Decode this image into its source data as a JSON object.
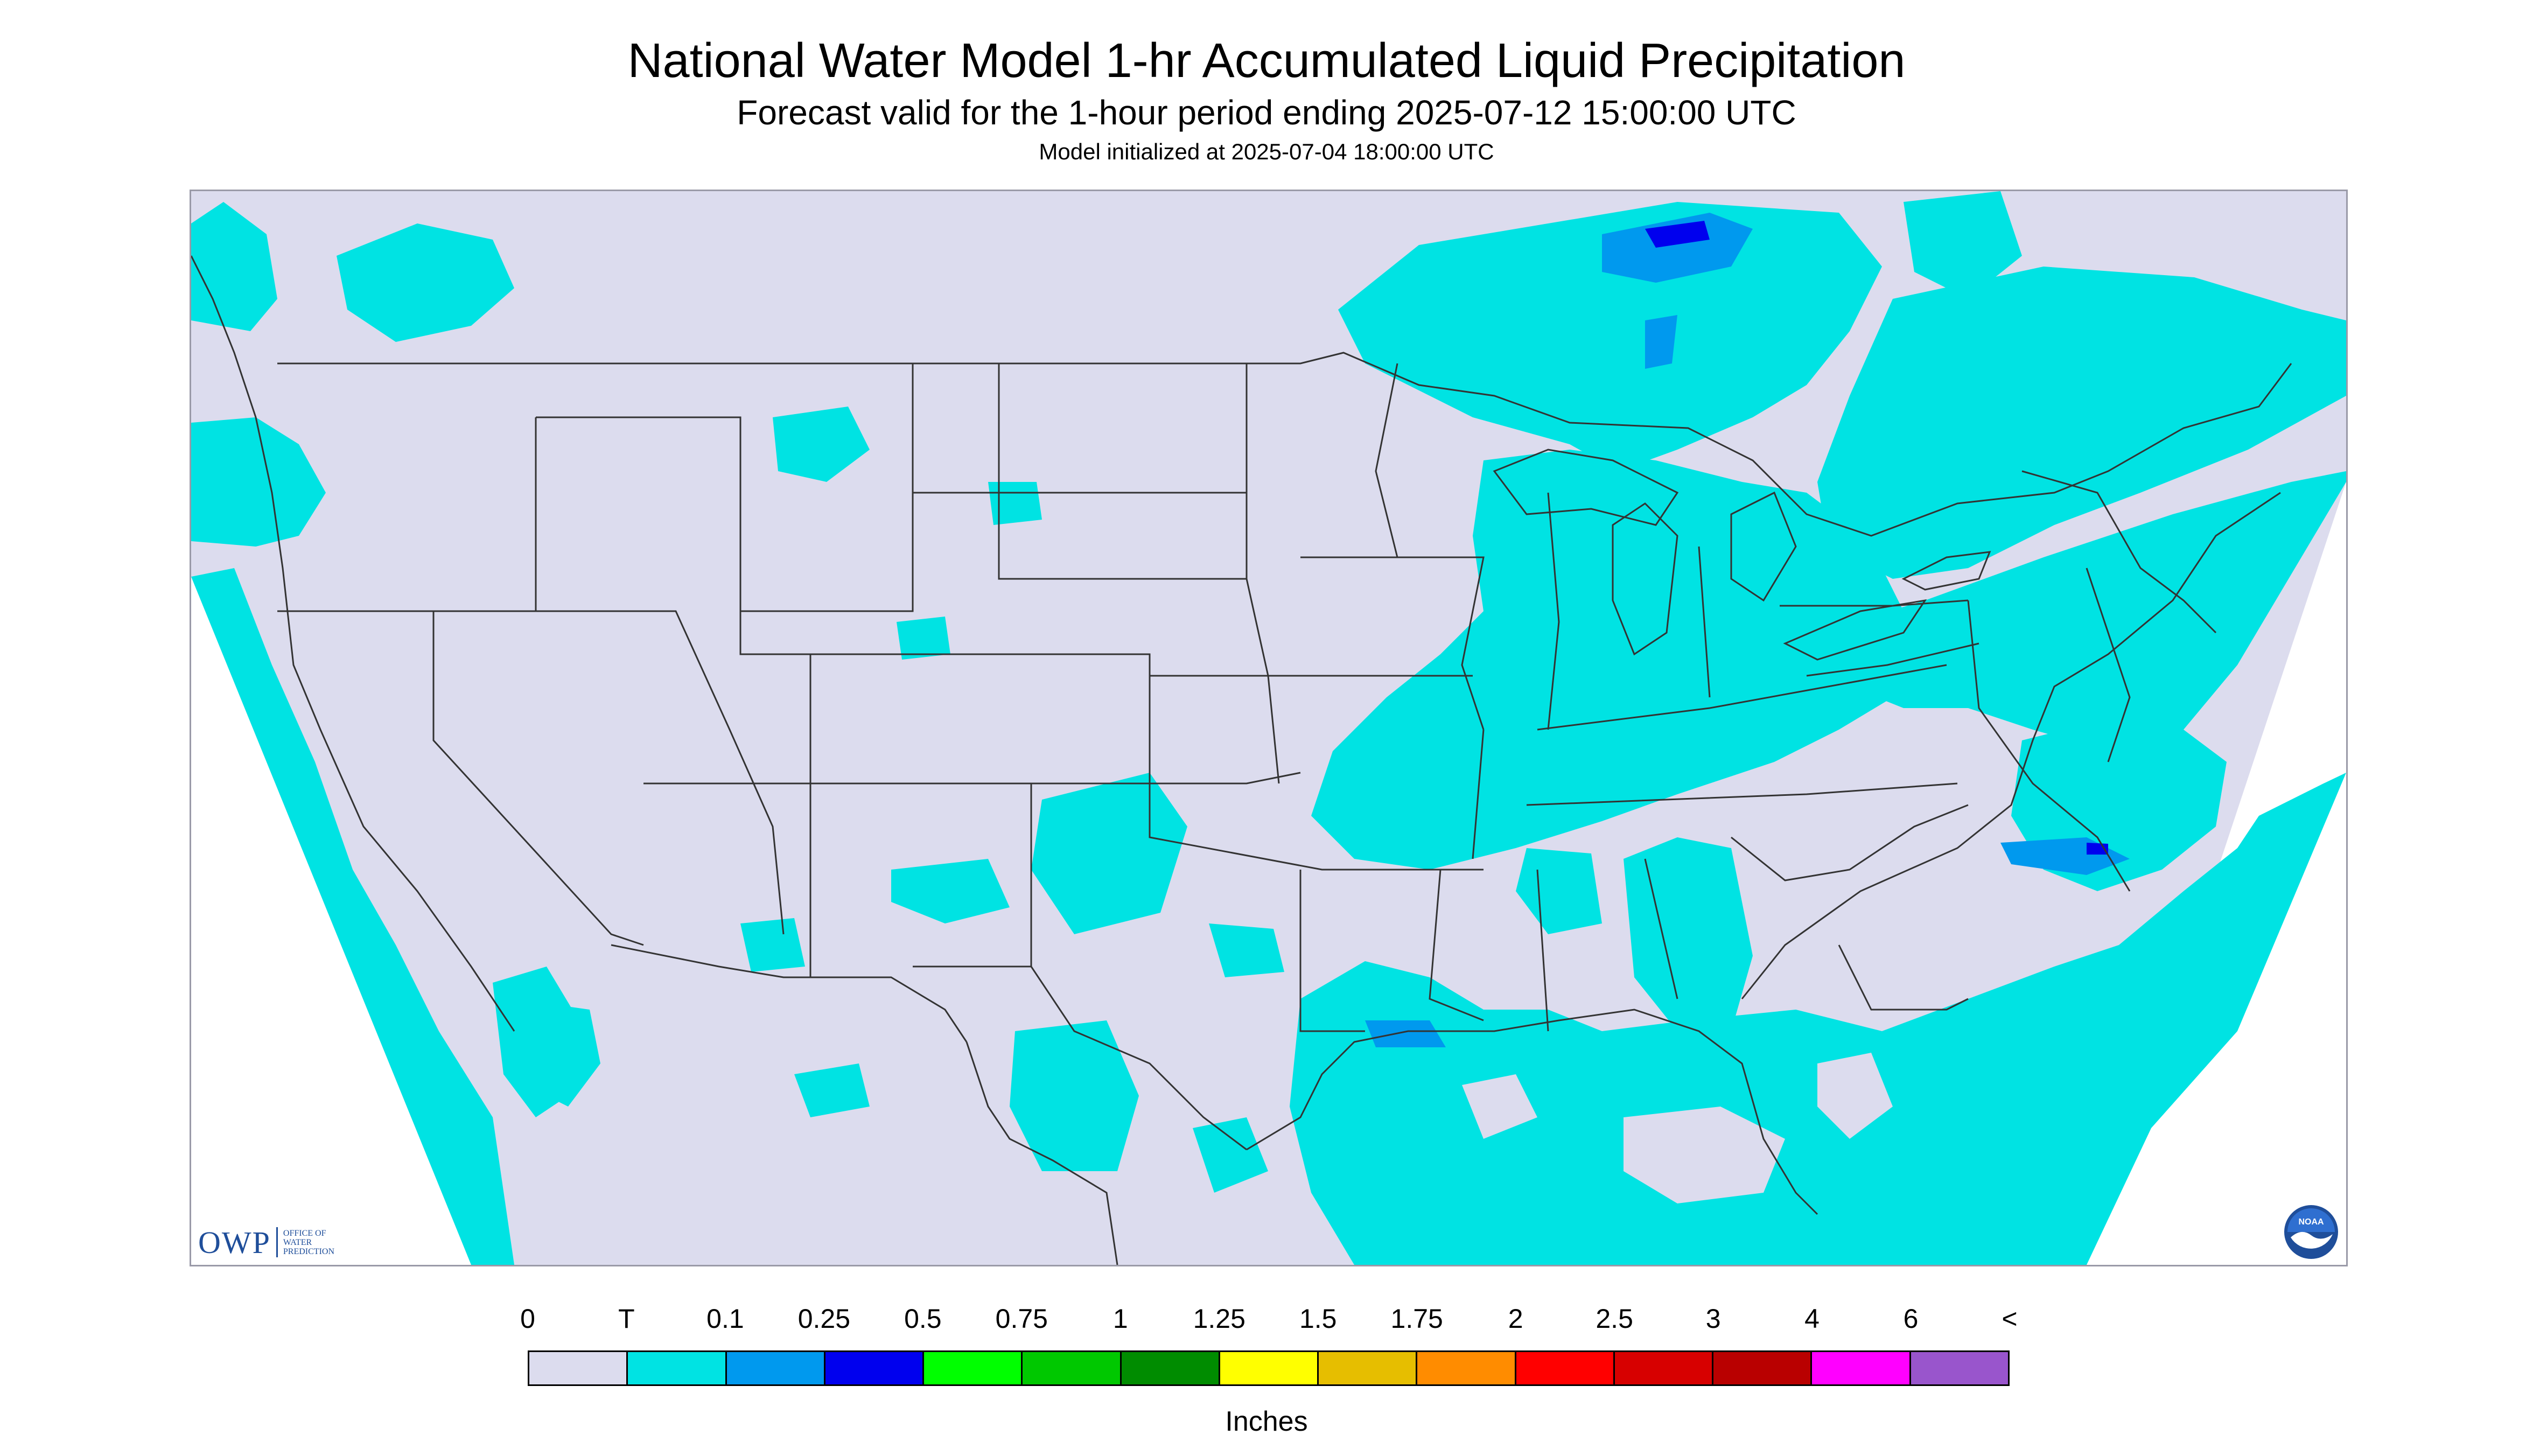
{
  "title": "National Water Model 1-hr Accumulated Liquid Precipitation",
  "subtitle": "Forecast valid for the 1-hour period ending 2025-07-12 15:00:00 UTC",
  "init_line": "Model initialized at 2025-07-04 18:00:00 UTC",
  "colors": {
    "domain_bg": "#dcdcee",
    "precip_trace": "#00e3e3",
    "precip_low": "#0099ee",
    "precip_mid": "#0000ee",
    "border_lines": "#333333"
  },
  "legend": {
    "labels": [
      "0",
      "T",
      "0.1",
      "0.25",
      "0.5",
      "0.75",
      "1",
      "1.25",
      "1.5",
      "1.75",
      "2",
      "2.5",
      "3",
      "4",
      "6",
      "<"
    ],
    "colors": [
      "#dcdcee",
      "#00e3e3",
      "#0099ee",
      "#0000ee",
      "#00ff00",
      "#00c800",
      "#008c00",
      "#ffff00",
      "#e6be00",
      "#ff8c00",
      "#ff0000",
      "#d70000",
      "#b90000",
      "#ff00ff",
      "#9955cc"
    ],
    "units": "Inches"
  },
  "logos": {
    "owp_mark": "OWP",
    "owp_text": [
      "OFFICE OF",
      "WATER",
      "PREDICTION"
    ],
    "noaa": "NOAA"
  }
}
